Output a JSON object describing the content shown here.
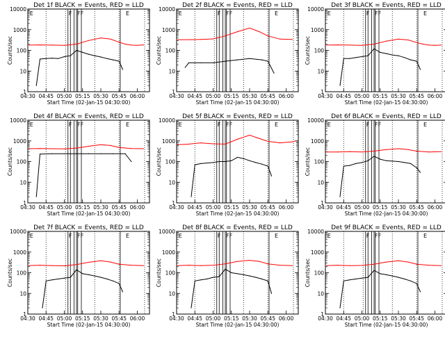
{
  "common": {
    "xlabel": "Start Time (02-Jan-15 04:30:00)",
    "ylabel": "Counts/sec",
    "x_ticks": [
      "04:30",
      "04:45",
      "05:00",
      "05:15",
      "05:30",
      "05:45",
      "06:00"
    ],
    "y_ticks": [
      "1",
      "10",
      "100",
      "1000",
      "10000"
    ],
    "flag_labels": [
      "E",
      "F",
      "FF",
      "E"
    ],
    "colors": {
      "events": "#000000",
      "lld": "#ff0000"
    }
  },
  "chart_data": [
    {
      "type": "line",
      "title": "Det 1f BLACK = Events, RED = LLD",
      "xlim": [
        "04:30",
        "06:10"
      ],
      "ylim": [
        1,
        10000
      ],
      "yscale": "log",
      "series": [
        {
          "x": [
            "04:37",
            "04:40",
            "04:45",
            "04:50",
            "04:55",
            "05:00",
            "05:05",
            "05:10",
            "05:15",
            "05:20",
            "05:25",
            "05:30",
            "05:35",
            "05:40",
            "05:45",
            "05:48"
          ],
          "values": [
            2,
            38,
            40,
            42,
            40,
            50,
            55,
            100,
            80,
            65,
            55,
            48,
            40,
            35,
            30,
            12
          ]
        },
        {
          "x": [
            "04:31",
            "04:40",
            "04:50",
            "05:00",
            "05:10",
            "05:20",
            "05:30",
            "05:38",
            "05:45",
            "05:50",
            "05:55",
            "06:00",
            "06:05"
          ],
          "values": [
            180,
            185,
            180,
            175,
            200,
            300,
            400,
            350,
            250,
            200,
            180,
            175,
            185
          ]
        }
      ]
    },
    {
      "type": "line",
      "title": "Det 2f BLACK = Events, RED = LLD",
      "xlim": [
        "04:30",
        "06:10"
      ],
      "ylim": [
        1,
        10000
      ],
      "yscale": "log",
      "series": [
        {
          "x": [
            "04:37",
            "04:40",
            "04:50",
            "05:00",
            "05:10",
            "05:20",
            "05:30",
            "05:40",
            "05:45",
            "05:50"
          ],
          "values": [
            15,
            25,
            25,
            25,
            30,
            35,
            40,
            35,
            30,
            8
          ]
        },
        {
          "x": [
            "04:31",
            "04:40",
            "04:50",
            "05:00",
            "05:10",
            "05:20",
            "05:30",
            "05:38",
            "05:45",
            "05:55",
            "06:05"
          ],
          "values": [
            330,
            330,
            340,
            360,
            500,
            800,
            1200,
            800,
            500,
            350,
            340
          ]
        }
      ]
    },
    {
      "type": "line",
      "title": "Det 3f BLACK = Events, RED = LLD",
      "xlim": [
        "04:30",
        "06:10"
      ],
      "ylim": [
        1,
        10000
      ],
      "yscale": "log",
      "series": [
        {
          "x": [
            "04:42",
            "04:45",
            "04:50",
            "04:55",
            "05:00",
            "05:05",
            "05:10",
            "05:15",
            "05:20",
            "05:25",
            "05:30",
            "05:35",
            "05:40",
            "05:45",
            "05:48"
          ],
          "values": [
            2,
            40,
            40,
            45,
            50,
            55,
            120,
            80,
            70,
            60,
            55,
            45,
            35,
            30,
            12
          ]
        },
        {
          "x": [
            "04:31",
            "04:40",
            "04:50",
            "05:00",
            "05:10",
            "05:20",
            "05:30",
            "05:38",
            "05:45",
            "05:50",
            "05:55",
            "06:00",
            "06:05"
          ],
          "values": [
            180,
            185,
            180,
            175,
            200,
            280,
            350,
            320,
            240,
            200,
            180,
            175,
            180
          ]
        }
      ]
    },
    {
      "type": "line",
      "title": "Det 4f BLACK = Events, RED = LLD",
      "xlim": [
        "04:30",
        "06:10"
      ],
      "ylim": [
        1,
        10000
      ],
      "yscale": "log",
      "series": [
        {
          "x": [
            "04:37",
            "04:40",
            "04:50",
            "05:00",
            "05:10",
            "05:20",
            "05:30",
            "05:40",
            "05:50",
            "05:55"
          ],
          "values": [
            2,
            230,
            240,
            240,
            240,
            240,
            240,
            240,
            240,
            100
          ]
        },
        {
          "x": [
            "04:31",
            "04:40",
            "04:50",
            "05:00",
            "05:10",
            "05:20",
            "05:30",
            "05:38",
            "05:45",
            "05:55",
            "06:05"
          ],
          "values": [
            420,
            430,
            420,
            410,
            450,
            550,
            650,
            600,
            480,
            430,
            420
          ]
        }
      ]
    },
    {
      "type": "line",
      "title": "Det 5f BLACK = Events, RED = LLD",
      "xlim": [
        "04:30",
        "06:10"
      ],
      "ylim": [
        1,
        10000
      ],
      "yscale": "log",
      "series": [
        {
          "x": [
            "04:42",
            "04:45",
            "04:50",
            "05:00",
            "05:05",
            "05:10",
            "05:15",
            "05:20",
            "05:25",
            "05:30",
            "05:35",
            "05:40",
            "05:45",
            "05:48"
          ],
          "values": [
            2,
            70,
            80,
            90,
            100,
            100,
            110,
            160,
            140,
            110,
            90,
            75,
            60,
            20
          ]
        },
        {
          "x": [
            "04:31",
            "04:40",
            "04:50",
            "05:00",
            "05:10",
            "05:20",
            "05:30",
            "05:38",
            "05:45",
            "05:55",
            "06:05",
            "06:08"
          ],
          "values": [
            650,
            700,
            800,
            720,
            700,
            1200,
            1900,
            1300,
            950,
            800,
            900,
            1000
          ]
        }
      ]
    },
    {
      "type": "line",
      "title": "Det 6f BLACK = Events, RED = LLD",
      "xlim": [
        "04:30",
        "06:10"
      ],
      "ylim": [
        1,
        10000
      ],
      "yscale": "log",
      "series": [
        {
          "x": [
            "04:42",
            "04:45",
            "04:50",
            "04:55",
            "05:00",
            "05:05",
            "05:10",
            "05:15",
            "05:20",
            "05:30",
            "05:35",
            "05:40",
            "05:45",
            "05:48"
          ],
          "values": [
            2,
            60,
            65,
            80,
            90,
            110,
            180,
            130,
            110,
            100,
            90,
            80,
            50,
            30
          ]
        },
        {
          "x": [
            "04:31",
            "04:40",
            "04:50",
            "05:00",
            "05:10",
            "05:20",
            "05:30",
            "05:38",
            "05:45",
            "05:55",
            "06:05"
          ],
          "values": [
            290,
            290,
            300,
            290,
            320,
            380,
            420,
            380,
            320,
            290,
            300
          ]
        }
      ]
    },
    {
      "type": "line",
      "title": "Det 7f BLACK = Events, RED = LLD",
      "xlim": [
        "04:30",
        "06:10"
      ],
      "ylim": [
        1,
        10000
      ],
      "yscale": "log",
      "series": [
        {
          "x": [
            "04:42",
            "04:45",
            "04:50",
            "04:55",
            "05:00",
            "05:05",
            "05:10",
            "05:15",
            "05:20",
            "05:25",
            "05:30",
            "05:35",
            "05:40",
            "05:45",
            "05:48"
          ],
          "values": [
            2,
            40,
            45,
            50,
            55,
            60,
            140,
            90,
            80,
            70,
            60,
            50,
            40,
            30,
            12
          ]
        },
        {
          "x": [
            "04:31",
            "04:40",
            "04:50",
            "05:00",
            "05:10",
            "05:20",
            "05:30",
            "05:38",
            "05:45",
            "05:55",
            "06:05"
          ],
          "values": [
            220,
            230,
            220,
            215,
            250,
            320,
            380,
            330,
            260,
            230,
            220
          ]
        }
      ]
    },
    {
      "type": "line",
      "title": "Det 8f BLACK = Events, RED = LLD",
      "xlim": [
        "04:30",
        "06:10"
      ],
      "ylim": [
        1,
        10000
      ],
      "yscale": "log",
      "series": [
        {
          "x": [
            "04:42",
            "04:45",
            "04:50",
            "04:55",
            "05:00",
            "05:05",
            "05:10",
            "05:15",
            "05:20",
            "05:25",
            "05:30",
            "05:35",
            "05:40",
            "05:45",
            "05:48"
          ],
          "values": [
            2,
            40,
            45,
            50,
            60,
            65,
            150,
            100,
            90,
            80,
            70,
            60,
            50,
            40,
            10
          ]
        },
        {
          "x": [
            "04:31",
            "04:40",
            "04:50",
            "05:00",
            "05:10",
            "05:20",
            "05:30",
            "05:38",
            "05:45",
            "05:55",
            "06:05"
          ],
          "values": [
            220,
            230,
            220,
            230,
            270,
            350,
            400,
            350,
            270,
            230,
            220
          ]
        }
      ]
    },
    {
      "type": "line",
      "title": "Det 9f BLACK = Events, RED = LLD",
      "xlim": [
        "04:30",
        "06:10"
      ],
      "ylim": [
        1,
        10000
      ],
      "yscale": "log",
      "series": [
        {
          "x": [
            "04:42",
            "04:45",
            "04:50",
            "04:55",
            "05:00",
            "05:05",
            "05:10",
            "05:15",
            "05:20",
            "05:25",
            "05:30",
            "05:35",
            "05:40",
            "05:45",
            "05:48"
          ],
          "values": [
            2,
            40,
            45,
            50,
            55,
            60,
            130,
            90,
            80,
            70,
            60,
            50,
            40,
            30,
            12
          ]
        },
        {
          "x": [
            "04:31",
            "04:40",
            "04:50",
            "05:00",
            "05:10",
            "05:20",
            "05:30",
            "05:38",
            "05:45",
            "05:55",
            "06:05"
          ],
          "values": [
            220,
            230,
            220,
            225,
            260,
            330,
            380,
            330,
            260,
            230,
            220
          ]
        }
      ]
    }
  ]
}
